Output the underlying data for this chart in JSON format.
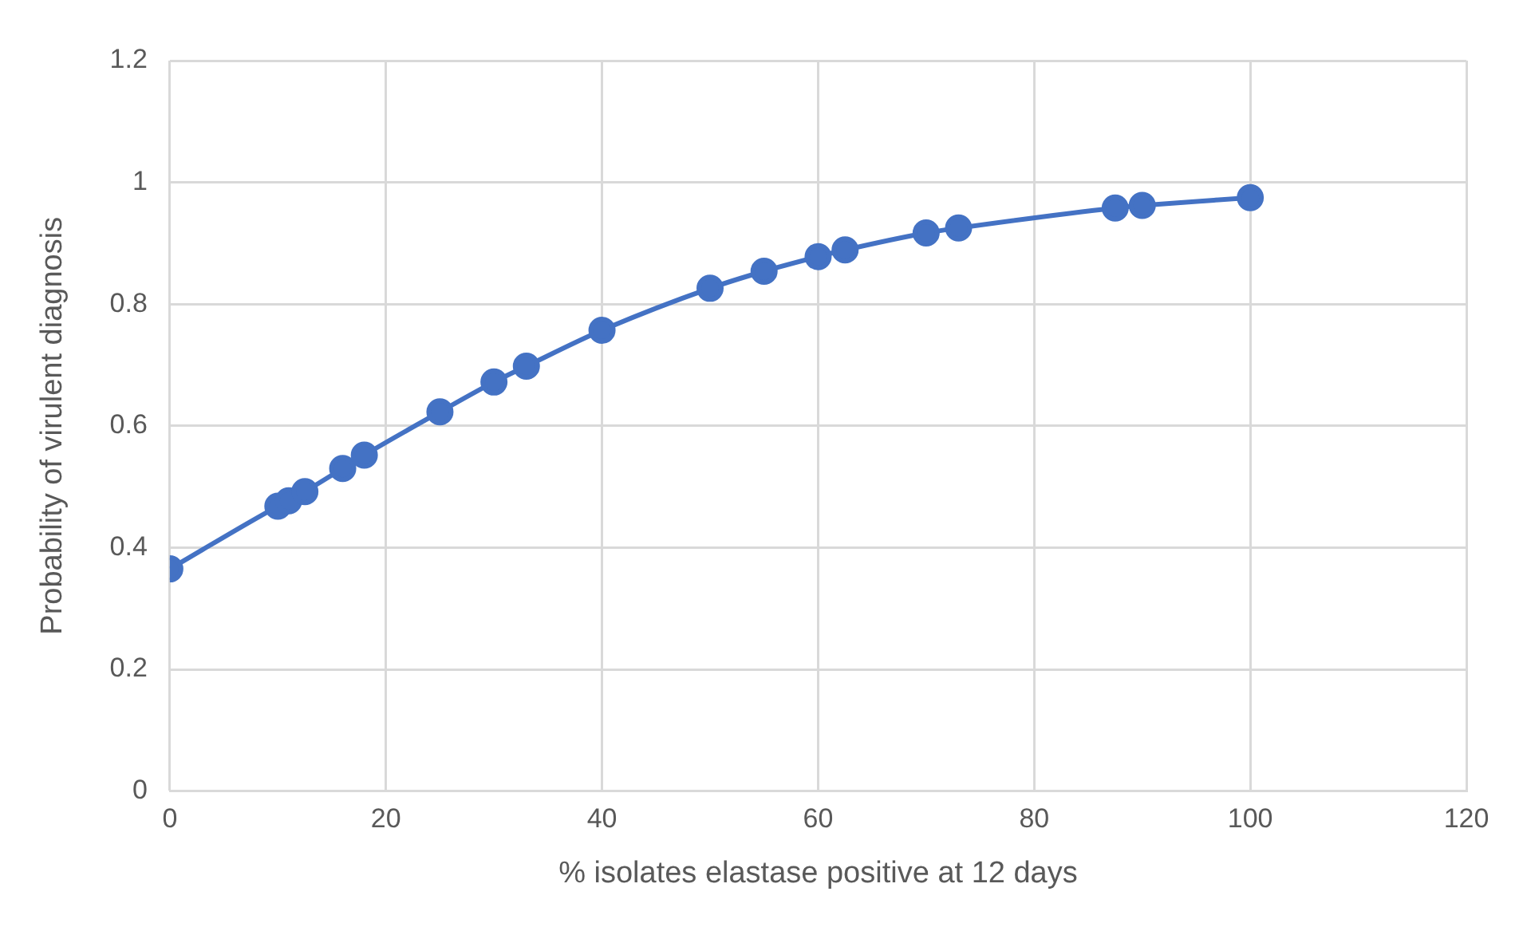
{
  "chart_data": {
    "type": "line",
    "xlabel": "% isolates elastase positive at 12 days",
    "ylabel": "Probability of virulent diagnosis",
    "series": [
      {
        "color": "#4472c4",
        "x": [
          0,
          10,
          11,
          12.5,
          16,
          18,
          25,
          30,
          33,
          40,
          50,
          55,
          60,
          62.5,
          70,
          73,
          87.5,
          90,
          100
        ],
        "values": [
          0.365,
          0.468,
          0.477,
          0.492,
          0.53,
          0.552,
          0.623,
          0.672,
          0.698,
          0.757,
          0.826,
          0.854,
          0.878,
          0.889,
          0.917,
          0.925,
          0.958,
          0.962,
          0.975
        ]
      }
    ],
    "xlim": [
      0,
      120
    ],
    "xticks": [
      0,
      20,
      40,
      60,
      80,
      100,
      120
    ],
    "ylim": [
      0,
      1.2
    ],
    "yticks": [
      0,
      0.2,
      0.4,
      0.6,
      0.8,
      1,
      1.2
    ],
    "grid": true,
    "marker": "circle",
    "line_style": "solid",
    "legend": false
  }
}
